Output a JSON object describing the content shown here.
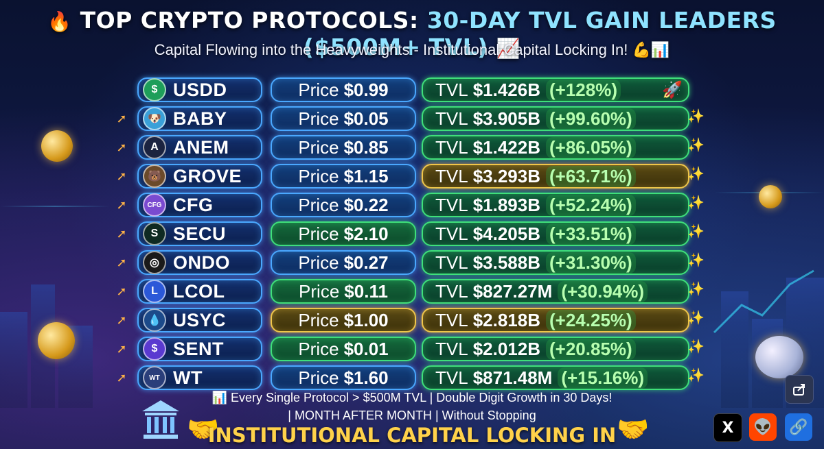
{
  "header": {
    "fire_emoji": "🔥",
    "title_main": "TOP CRYPTO PROTOCOLS: ",
    "title_accent": "30-DAY TVL GAIN LEADERS ($500M+ TVL)",
    "chart_emoji": "📈",
    "subtitle": "Capital Flowing into the Heavyweights - Institutional Capital Locking In! 💪📊"
  },
  "rows": [
    {
      "symbol": "USDD",
      "price_label": "Price",
      "price": "$0.99",
      "tvl_label": "TVL",
      "tvl": "$1.426B",
      "change": "(+128%)",
      "trail": "🚀",
      "logo_icon": "dollar-icon",
      "logo_text": "$",
      "logo_color": "#1e9e5a",
      "price_style": "blue",
      "tvl_style": "green"
    },
    {
      "symbol": "BABY",
      "price_label": "Price",
      "price": "$0.05",
      "tvl_label": "TVL",
      "tvl": "$3.905B",
      "change": "(+99.60%)",
      "trail": "✨",
      "logo_icon": "shiba-icon",
      "logo_text": "🐶",
      "logo_color": "#3aa0d8",
      "price_style": "blue",
      "tvl_style": "green"
    },
    {
      "symbol": "ANEM",
      "price_label": "Price",
      "price": "$0.85",
      "tvl_label": "TVL",
      "tvl": "$1.422B",
      "change": "(+86.05%)",
      "trail": "✨",
      "logo_icon": "anem-a-icon",
      "logo_text": "A",
      "logo_color": "#1b2340",
      "price_style": "blue",
      "tvl_style": "green"
    },
    {
      "symbol": "GROVE",
      "price_label": "Price",
      "price": "$1.15",
      "tvl_label": "TVL",
      "tvl": "$3.293B",
      "change": "(+63.71%)",
      "trail": "✨",
      "logo_icon": "grove-animal-icon",
      "logo_text": "🐻",
      "logo_color": "#6b4a2a",
      "price_style": "blue",
      "tvl_style": "gold"
    },
    {
      "symbol": "CFG",
      "price_label": "Price",
      "price": "$0.22",
      "tvl_label": "TVL",
      "tvl": "$1.893B",
      "change": "(+52.24%)",
      "trail": "✨",
      "logo_icon": "cfg-icon",
      "logo_text": "CFG",
      "logo_color": "#7a4ad0",
      "price_style": "blue",
      "tvl_style": "green"
    },
    {
      "symbol": "SECU",
      "price_label": "Price",
      "price": "$2.10",
      "tvl_label": "TVL",
      "tvl": "$4.205B",
      "change": "(+33.51%)",
      "trail": "✨",
      "logo_icon": "secu-s-icon",
      "logo_text": "S",
      "logo_color": "#0f2a22",
      "price_style": "green",
      "tvl_style": "green"
    },
    {
      "symbol": "ONDO",
      "price_label": "Price",
      "price": "$0.27",
      "tvl_label": "TVL",
      "tvl": "$3.588B",
      "change": "(+31.30%)",
      "trail": "✨",
      "logo_icon": "ondo-rings-icon",
      "logo_text": "◎",
      "logo_color": "#1a1a1a",
      "price_style": "blue",
      "tvl_style": "green"
    },
    {
      "symbol": "LCOL",
      "price_label": "Price",
      "price": "$0.11",
      "tvl_label": "TVL",
      "tvl": "$827.27M",
      "change": "(+30.94%)",
      "trail": "✨",
      "logo_icon": "lcol-l-icon",
      "logo_text": "L",
      "logo_color": "#2b58d8",
      "price_style": "green",
      "tvl_style": "green"
    },
    {
      "symbol": "USYC",
      "price_label": "Price",
      "price": "$1.00",
      "tvl_label": "TVL",
      "tvl": "$2.818B",
      "change": "(+24.25%)",
      "trail": "✨",
      "logo_icon": "usyc-drop-icon",
      "logo_text": "💧",
      "logo_color": "#1c4a8a",
      "price_style": "gold",
      "tvl_style": "gold"
    },
    {
      "symbol": "SENT",
      "price_label": "Price",
      "price": "$0.01",
      "tvl_label": "TVL",
      "tvl": "$2.012B",
      "change": "(+20.85%)",
      "trail": "✨",
      "logo_icon": "sent-s-icon",
      "logo_text": "$",
      "logo_color": "#5a3ad0",
      "price_style": "green",
      "tvl_style": "green"
    },
    {
      "symbol": "WT",
      "price_label": "Price",
      "price": "$1.60",
      "tvl_label": "TVL",
      "tvl": "$871.48M",
      "change": "(+15.16%)",
      "trail": "✨",
      "logo_icon": "wt-icon",
      "logo_text": "WT",
      "logo_color": "#2a3e7a",
      "price_style": "blue",
      "tvl_style": "green"
    }
  ],
  "footer": {
    "line1": "📊 Every Single Protocol > $500M TVL | Double Digit Growth in 30 Days!",
    "line2": "| MONTH AFTER MONTH | Without Stopping",
    "line3": "INSTITUTIONAL CAPITAL LOCKING IN",
    "handshake": "🤝"
  },
  "social": {
    "x_label": "X",
    "reddit_label": "👽",
    "link_label": "🔗",
    "share_icon": "share-icon"
  }
}
